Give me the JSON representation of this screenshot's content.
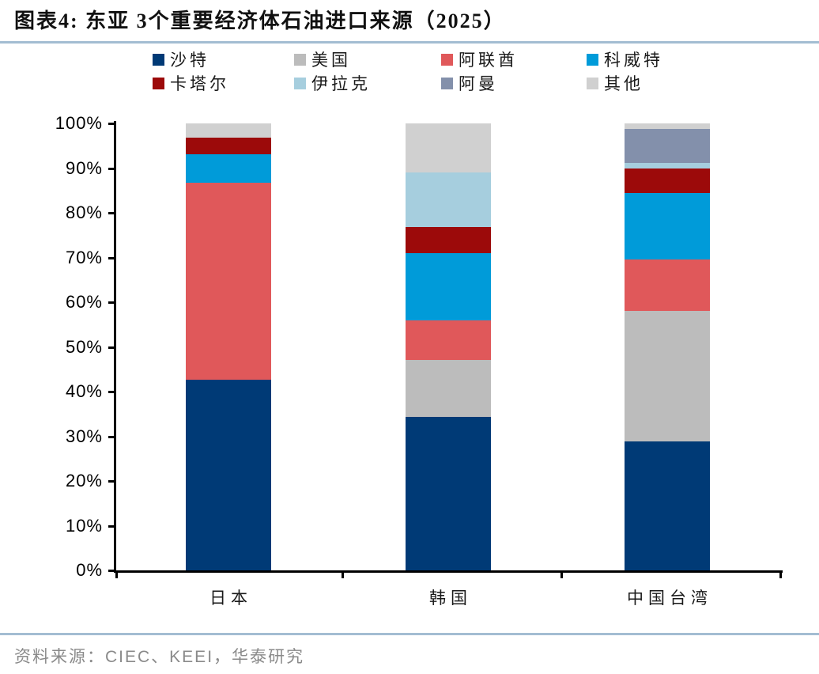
{
  "page": {
    "title": "图表4:  东亚 3个重要经济体石油进口来源（2025）",
    "source": "资料来源：CIEC、KEEI，华泰研究"
  },
  "colors": {
    "divider_blue": "#a3bdd2",
    "axis_black": "#000000",
    "source_gray": "#8a8a8a"
  },
  "chart_data": {
    "type": "bar",
    "stacked": true,
    "unit": "%",
    "title": "东亚 3个重要经济体石油进口来源（2025）",
    "categories": [
      "日本",
      "韩国",
      "中国台湾"
    ],
    "series": [
      {
        "name": "沙特",
        "color": "#003a76",
        "values": [
          42.7,
          34.3,
          28.8
        ]
      },
      {
        "name": "美国",
        "color": "#bcbcbc",
        "values": [
          0,
          12.7,
          29.3
        ]
      },
      {
        "name": "阿联酋",
        "color": "#e0585a",
        "values": [
          44.1,
          8.9,
          11.5
        ]
      },
      {
        "name": "科威特",
        "color": "#009bd9",
        "values": [
          6.3,
          15.1,
          14.8
        ]
      },
      {
        "name": "卡塔尔",
        "color": "#9c0a0a",
        "values": [
          3.7,
          5.9,
          5.6
        ]
      },
      {
        "name": "伊拉克",
        "color": "#a6cede",
        "values": [
          0,
          12.2,
          1.2
        ]
      },
      {
        "name": "阿曼",
        "color": "#8390ab",
        "values": [
          0,
          0,
          7.6
        ]
      },
      {
        "name": "其他",
        "color": "#d0d0d0",
        "values": [
          3.2,
          10.9,
          1.2
        ]
      }
    ],
    "ylabel": "",
    "ylim": [
      0,
      100
    ],
    "yticks": [
      "0%",
      "10%",
      "20%",
      "30%",
      "40%",
      "50%",
      "60%",
      "70%",
      "80%",
      "90%",
      "100%"
    ],
    "legend_position": "top",
    "legend_rows": 2,
    "grid": false
  }
}
